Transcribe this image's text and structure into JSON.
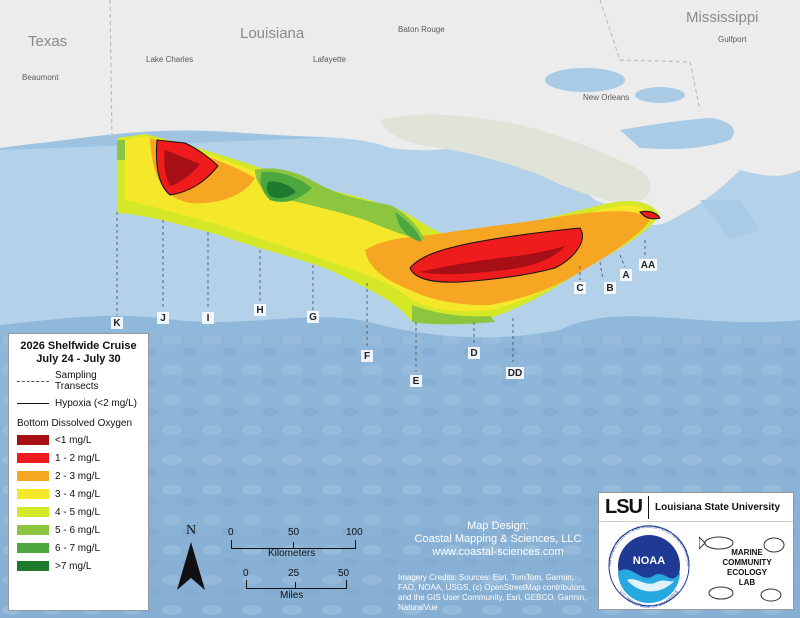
{
  "map": {
    "states": [
      {
        "name": "Texas"
      },
      {
        "name": "Louisiana"
      },
      {
        "name": "Mississippi"
      }
    ],
    "cities": [
      {
        "name": "Beaumont"
      },
      {
        "name": "Lake Charles"
      },
      {
        "name": "Lafayette"
      },
      {
        "name": "Baton Rouge"
      },
      {
        "name": "New Orleans"
      },
      {
        "name": "Gulfport"
      }
    ],
    "transects": [
      "K",
      "J",
      "I",
      "H",
      "G",
      "F",
      "E",
      "D",
      "DD",
      "C",
      "B",
      "A",
      "AA"
    ]
  },
  "legend": {
    "title_line1": "2026 Shelfwide Cruise",
    "title_line2": "July 24 - July 30",
    "sampling": "Sampling Transects",
    "hypoxia": "Hypoxia (<2 mg/L)",
    "do_title": "Bottom Dissolved Oxygen",
    "classes": [
      {
        "label": "<1 mg/L",
        "color": "#a50f15"
      },
      {
        "label": "1 - 2 mg/L",
        "color": "#ee1c1c"
      },
      {
        "label": "2 - 3 mg/L",
        "color": "#f7a623"
      },
      {
        "label": "3 - 4 mg/L",
        "color": "#f5e72a"
      },
      {
        "label": "4 - 5 mg/L",
        "color": "#d4e827"
      },
      {
        "label": "5 - 6 mg/L",
        "color": "#8cc63f"
      },
      {
        "label": "6 - 7 mg/L",
        "color": "#4ca73e"
      },
      {
        "label": ">7 mg/L",
        "color": "#1e7b2e"
      }
    ]
  },
  "scale": {
    "km_ticks": [
      "0",
      "50",
      "100"
    ],
    "km_label": "Kilometers",
    "mi_ticks": [
      "0",
      "25",
      "50"
    ],
    "mi_label": "Miles",
    "north": "N"
  },
  "credits": {
    "design1": "Map Design:",
    "design2": "Coastal Mapping & Sciences, LLC",
    "design3": "www.coastal-sciences.com",
    "imagery1": "Imagery Credits: Sources: Esri, TomTom, Garmin,",
    "imagery2": "FAO, NOAA, USGS, (c) OpenStreetMap contributors,",
    "imagery3": "and the GIS User Community, Esri, GEBCO, Garmin,",
    "imagery4": "NaturalVue"
  },
  "logos": {
    "lsu": "LSU",
    "lsu_full": "Louisiana State University",
    "noaa": "NOAA",
    "noaa_ring_top": "NATIONAL OCEANIC AND ATMOSPHERIC ADMINISTRATION",
    "noaa_ring_bottom": "U.S. DEPARTMENT OF COMMERCE",
    "mcel1": "MARINE",
    "mcel2": "COMMUNITY",
    "mcel3": "ECOLOGY",
    "mcel4": "LAB"
  }
}
